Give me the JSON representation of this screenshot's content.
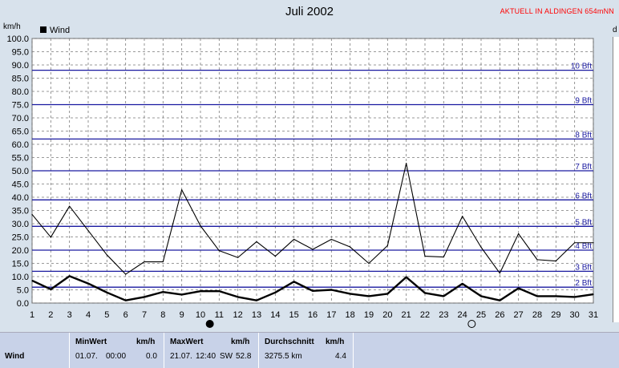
{
  "header": {
    "title": "Juli 2002",
    "badge": "AKTUELL IN ALDINGEN 654mNN",
    "unit_left": "km/h",
    "unit_right": "d"
  },
  "chart_data": {
    "type": "line",
    "title": "Juli 2002",
    "ylabel": "km/h",
    "ylim": [
      0,
      100
    ],
    "grid": true,
    "legend_position": "top-left",
    "x": [
      1,
      2,
      3,
      4,
      5,
      6,
      7,
      8,
      9,
      10,
      11,
      12,
      13,
      14,
      15,
      16,
      17,
      18,
      19,
      20,
      21,
      22,
      23,
      24,
      25,
      26,
      27,
      28,
      29,
      30,
      31
    ],
    "x_tick_labels": [
      "1",
      "2",
      "3",
      "4",
      "5",
      "6",
      "7",
      "8",
      "9",
      "10",
      "11",
      "12",
      "13",
      "14",
      "15",
      "16",
      "17",
      "18",
      "19",
      "20",
      "21",
      "22",
      "23",
      "24",
      "25",
      "26",
      "27",
      "28",
      "29",
      "30",
      "31"
    ],
    "y_tick_labels": [
      "0.0",
      "5.0",
      "10.0",
      "15.0",
      "20.0",
      "25.0",
      "30.0",
      "35.0",
      "40.0",
      "45.0",
      "50.0",
      "55.0",
      "60.0",
      "65.0",
      "70.0",
      "75.0",
      "80.0",
      "85.0",
      "90.0",
      "95.0",
      "100.0"
    ],
    "series": [
      {
        "name": "Wind",
        "color": "#000000",
        "values": [
          8.5,
          5.2,
          10.2,
          7.4,
          4.0,
          1.0,
          2.3,
          4.2,
          3.2,
          4.5,
          4.5,
          2.3,
          1.0,
          4.0,
          8.1,
          4.6,
          5.0,
          3.5,
          2.6,
          3.5,
          9.8,
          3.8,
          2.6,
          7.3,
          2.6,
          1.0,
          5.6,
          2.6,
          2.6,
          2.3,
          3.3
        ]
      },
      {
        "values": [
          33.5,
          24.9,
          36.6,
          27.4,
          18.2,
          10.9,
          15.6,
          15.6,
          42.8,
          29.2,
          19.8,
          17.2,
          23.2,
          17.7,
          24.1,
          20.3,
          24.1,
          21.2,
          15.0,
          21.7,
          52.8,
          17.7,
          17.4,
          32.8,
          21.1,
          11.3,
          26.2,
          16.4,
          15.9,
          22.8,
          22.8
        ]
      }
    ],
    "beaufort_lines": [
      {
        "label": "2 Bft",
        "value": 6.0
      },
      {
        "label": "3 Bft",
        "value": 12.0
      },
      {
        "label": "4 Bft",
        "value": 20.0
      },
      {
        "label": "5 Bft",
        "value": 29.0
      },
      {
        "label": "6 Bft",
        "value": 39.0
      },
      {
        "label": "7 Bft",
        "value": 50.0
      },
      {
        "label": "8 Bft",
        "value": 62.0
      },
      {
        "label": "9 Bft",
        "value": 75.0
      },
      {
        "label": "10 Bft",
        "value": 88.0
      }
    ],
    "markers": [
      {
        "symbol": "full-moon",
        "x": 10.5
      },
      {
        "symbol": "new-moon",
        "x": 24.5
      }
    ]
  },
  "stats": {
    "row_label": "Wind",
    "min": {
      "header": "MinWert",
      "unit": "km/h",
      "date": "01.07.",
      "time": "00:00",
      "value": "0.0"
    },
    "max": {
      "header": "MaxWert",
      "unit": "km/h",
      "date": "21.07.",
      "time": "12:40",
      "direction": "SW",
      "value": "52.8"
    },
    "avg": {
      "header": "Durchschnitt",
      "unit": "km/h",
      "distance": "3275.5 km",
      "value": "4.4"
    }
  }
}
